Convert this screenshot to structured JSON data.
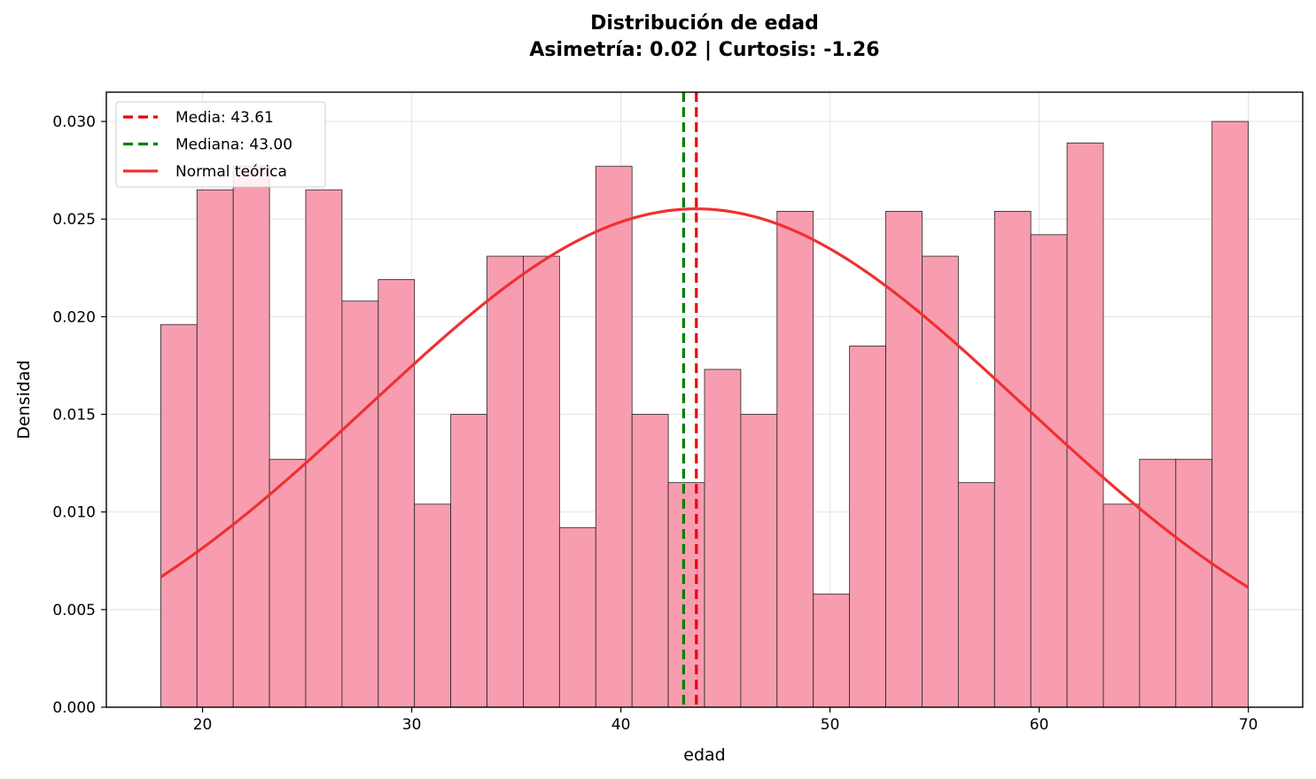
{
  "chart_data": {
    "type": "bar",
    "title": "Distribución de edad",
    "subtitle": "Asimetría: 0.02 | Curtosis: -1.26",
    "xlabel": "edad",
    "ylabel": "Densidad",
    "xlim": [
      15.4,
      72.6
    ],
    "ylim": [
      0,
      0.0315
    ],
    "xticks": [
      20,
      30,
      40,
      50,
      60,
      70
    ],
    "xtick_labels": [
      "20",
      "30",
      "40",
      "50",
      "60",
      "70"
    ],
    "yticks": [
      0,
      0.005,
      0.01,
      0.015,
      0.02,
      0.025,
      0.03
    ],
    "ytick_labels": [
      "0.000",
      "0.005",
      "0.010",
      "0.015",
      "0.020",
      "0.025",
      "0.030"
    ],
    "grid": true,
    "legend_position": "top-left",
    "bin_edges": [
      18.0,
      19.7333,
      21.4667,
      23.2,
      24.9333,
      26.6667,
      28.4,
      30.1333,
      31.8667,
      33.6,
      35.3333,
      37.0667,
      38.8,
      40.5333,
      42.2667,
      44.0,
      45.7333,
      47.4667,
      49.2,
      50.9333,
      52.6667,
      54.4,
      56.1333,
      57.8667,
      59.6,
      61.3333,
      63.0667,
      64.8,
      66.5333,
      68.2667,
      70.0
    ],
    "values": [
      0.0196,
      0.0265,
      0.0277,
      0.0127,
      0.0265,
      0.0208,
      0.0219,
      0.0104,
      0.015,
      0.0231,
      0.0231,
      0.0092,
      0.0277,
      0.015,
      0.0115,
      0.0173,
      0.015,
      0.0254,
      0.0058,
      0.0185,
      0.0254,
      0.0231,
      0.0115,
      0.0254,
      0.0242,
      0.0289,
      0.0104,
      0.0127,
      0.0127,
      0.03
    ],
    "series": [
      {
        "name": "Media: 43.61",
        "kind": "vline",
        "x": 43.61,
        "color": "#ee0000",
        "dash": true
      },
      {
        "name": "Mediana: 43.00",
        "kind": "vline",
        "x": 43.0,
        "color": "#008000",
        "dash": true
      },
      {
        "name": "Normal teórica",
        "kind": "curve",
        "mean": 43.61,
        "std": 15.63,
        "x_range": [
          18,
          70
        ],
        "color": "#f03030",
        "dash": false
      }
    ],
    "colors": {
      "bar_fill": "#f89db0",
      "bar_edge": "#222222",
      "grid": "#e6e6e6"
    }
  }
}
